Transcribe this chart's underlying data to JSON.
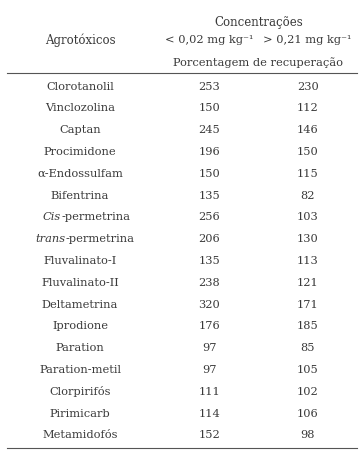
{
  "title": "Concentrações",
  "col1_header": "Agrotóxicos",
  "col2_header": "< 0,02 mg kg⁻¹",
  "col3_header": "> 0,21 mg kg⁻¹",
  "subheader": "Porcentagem de recuperação",
  "rows": [
    {
      "name": "Clorotanolil",
      "partial_italic": false,
      "v1": "253",
      "v2": "230"
    },
    {
      "name": "Vinclozolina",
      "partial_italic": false,
      "v1": "150",
      "v2": "112"
    },
    {
      "name": "Captan",
      "partial_italic": false,
      "v1": "245",
      "v2": "146"
    },
    {
      "name": "Procimidone",
      "partial_italic": false,
      "v1": "196",
      "v2": "150"
    },
    {
      "name": "α-Endossulfam",
      "partial_italic": false,
      "v1": "150",
      "v2": "115"
    },
    {
      "name": "Bifentrina",
      "partial_italic": false,
      "v1": "135",
      "v2": "82"
    },
    {
      "name": "Cis-permetrina",
      "partial_italic": true,
      "italic_part": "Cis",
      "rest": "-permetrina",
      "v1": "256",
      "v2": "103"
    },
    {
      "name": "trans-permetrina",
      "partial_italic": true,
      "italic_part": "trans",
      "rest": "-permetrina",
      "v1": "206",
      "v2": "130"
    },
    {
      "name": "Fluvalinato-I",
      "partial_italic": false,
      "v1": "135",
      "v2": "113"
    },
    {
      "name": "Fluvalinato-II",
      "partial_italic": false,
      "v1": "238",
      "v2": "121"
    },
    {
      "name": "Deltametrina",
      "partial_italic": false,
      "v1": "320",
      "v2": "171"
    },
    {
      "name": "Iprodione",
      "partial_italic": false,
      "v1": "176",
      "v2": "185"
    },
    {
      "name": "Paration",
      "partial_italic": false,
      "v1": "97",
      "v2": "85"
    },
    {
      "name": "Paration-metil",
      "partial_italic": false,
      "v1": "97",
      "v2": "105"
    },
    {
      "name": "Clorpirifós",
      "partial_italic": false,
      "v1": "111",
      "v2": "102"
    },
    {
      "name": "Pirimicarb",
      "partial_italic": false,
      "v1": "114",
      "v2": "106"
    },
    {
      "name": "Metamidofós",
      "partial_italic": false,
      "v1": "152",
      "v2": "98"
    }
  ],
  "bg_color": "#ffffff",
  "text_color": "#3a3a3a",
  "line_color": "#555555",
  "font_size": 8.2,
  "header_font_size": 8.5
}
